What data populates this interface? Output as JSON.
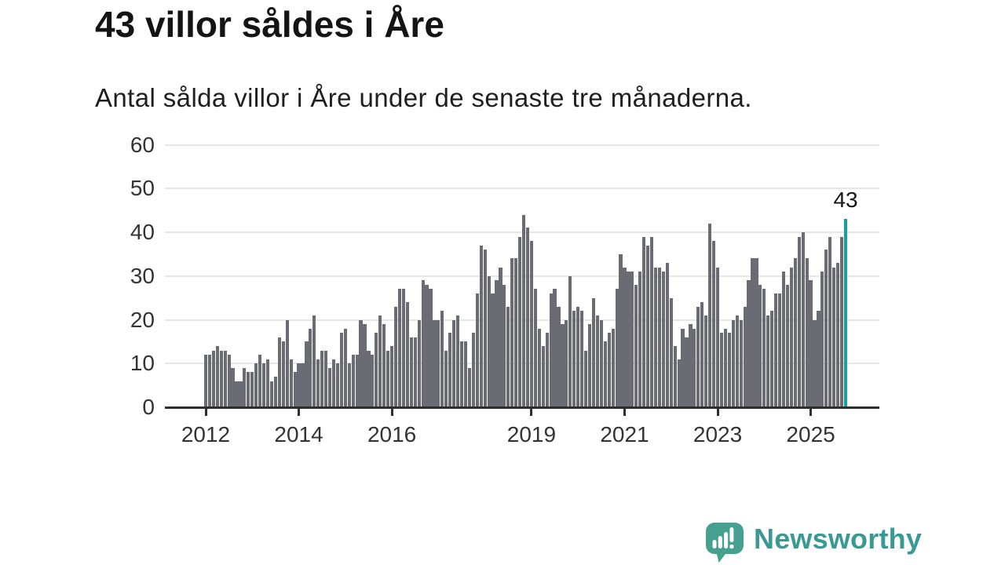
{
  "title": {
    "text": "43 villor såldes i Åre"
  },
  "subtitle": {
    "text": "Antal sålda villor i Åre under de senaste tre månaderna."
  },
  "logo": {
    "text": "Newsworthy"
  },
  "colors": {
    "bar": "#6b6b74",
    "highlight": "#12a2a2",
    "grid": "#e6e6e6",
    "axis": "#2e2e2e",
    "logo_bubble": "#46a08f",
    "logo_text": "#399a93"
  },
  "chart_data": {
    "type": "bar",
    "title": "43 villor såldes i Åre",
    "subtitle": "Antal sålda villor i Åre under de senaste tre månaderna.",
    "x_description": "Monthly periods from 2012 to 2025 (rolling three-month totals)",
    "ylabel": "",
    "xlabel": "",
    "ylim": [
      0,
      60
    ],
    "grid": true,
    "y_ticks": [
      0,
      10,
      20,
      30,
      40,
      50,
      60
    ],
    "x_ticks": [
      {
        "label": "2012",
        "index": 0
      },
      {
        "label": "2014",
        "index": 24
      },
      {
        "label": "2016",
        "index": 48
      },
      {
        "label": "2019",
        "index": 84
      },
      {
        "label": "2021",
        "index": 108
      },
      {
        "label": "2023",
        "index": 132
      },
      {
        "label": "2025",
        "index": 156
      }
    ],
    "values": [
      12,
      12,
      13,
      14,
      13,
      13,
      12,
      9,
      6,
      6,
      9,
      8,
      8,
      10,
      12,
      10,
      11,
      6,
      7,
      16,
      15,
      20,
      11,
      8,
      10,
      10,
      15,
      18,
      21,
      11,
      13,
      13,
      9,
      11,
      10,
      17,
      18,
      10,
      12,
      12,
      20,
      19,
      13,
      12,
      17,
      21,
      19,
      13,
      14,
      23,
      27,
      27,
      24,
      16,
      16,
      20,
      29,
      28,
      27,
      20,
      20,
      22,
      13,
      17,
      20,
      21,
      15,
      15,
      9,
      17,
      26,
      37,
      36,
      30,
      26,
      29,
      32,
      28,
      23,
      34,
      34,
      39,
      44,
      41,
      38,
      27,
      18,
      14,
      17,
      26,
      27,
      23,
      19,
      20,
      30,
      22,
      23,
      22,
      13,
      19,
      25,
      21,
      20,
      15,
      17,
      18,
      27,
      35,
      32,
      31,
      31,
      28,
      31,
      39,
      37,
      39,
      32,
      32,
      31,
      33,
      25,
      14,
      11,
      18,
      16,
      19,
      18,
      23,
      24,
      21,
      42,
      38,
      32,
      17,
      18,
      17,
      20,
      21,
      20,
      23,
      29,
      34,
      34,
      28,
      27,
      21,
      22,
      26,
      26,
      31,
      28,
      32,
      34,
      39,
      40,
      34,
      29,
      20,
      22,
      31,
      36,
      39,
      32,
      33,
      39,
      43
    ],
    "highlight_last": {
      "value": 43,
      "label": "43"
    },
    "legend": null
  }
}
